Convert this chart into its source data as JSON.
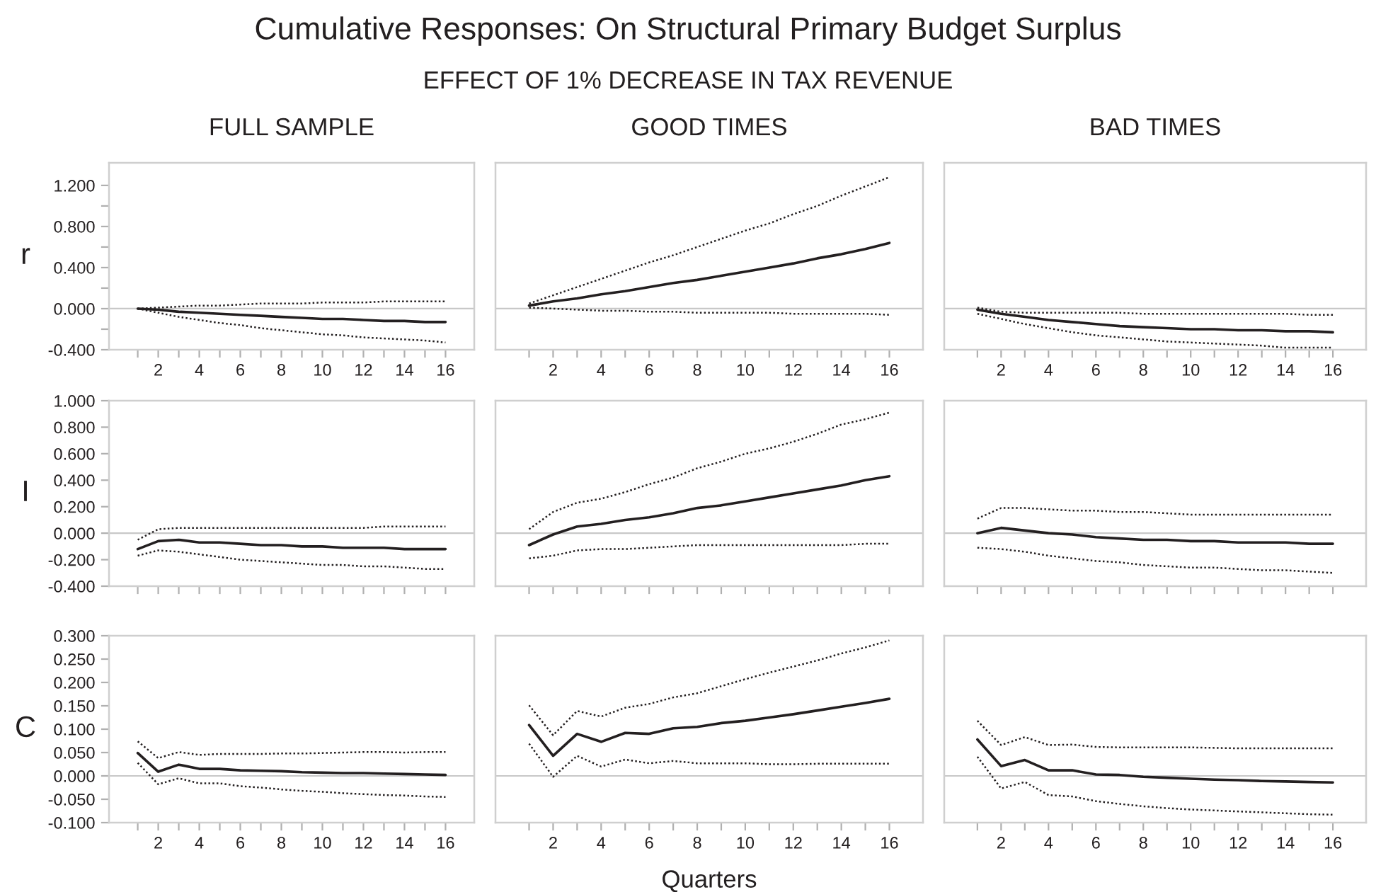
{
  "chart_data": [
    {
      "type": "line",
      "title": "FULL SAMPLE",
      "ylabel": "r",
      "annotations": [
        "Cumulative Responses: On Structural Primary Budget Surplus",
        "EFFECT OF 1% DECREASE IN TAX REVENUE"
      ],
      "x": [
        1,
        2,
        3,
        4,
        5,
        6,
        7,
        8,
        9,
        10,
        11,
        12,
        13,
        14,
        15,
        16
      ],
      "xlim": [
        -0.4,
        17.4
      ],
      "ylim": [
        -0.4,
        1.42
      ],
      "xticks": [
        {
          "value": 1,
          "label": null
        },
        2,
        {
          "value": 3,
          "label": null
        },
        4,
        {
          "value": 5,
          "label": null
        },
        6,
        {
          "value": 7,
          "label": null
        },
        8,
        {
          "value": 9,
          "label": null
        },
        10,
        {
          "value": 11,
          "label": null
        },
        12,
        {
          "value": 13,
          "label": null
        },
        14,
        {
          "value": 15,
          "label": null
        },
        16
      ],
      "yticks": [
        {
          "value": -0.4,
          "label": "-0.400"
        },
        {
          "value": -0.2,
          "label": null
        },
        {
          "value": 0,
          "label": "0.000"
        },
        {
          "value": 0.2,
          "label": null
        },
        {
          "value": 0.4,
          "label": "0.400"
        },
        {
          "value": 0.6,
          "label": null
        },
        {
          "value": 0.8,
          "label": "0.800"
        },
        {
          "value": 1.0,
          "label": null
        },
        {
          "value": 1.2,
          "label": "1.200"
        }
      ],
      "ref_lines": [
        {
          "axis": "y",
          "value": 0,
          "color": "#c8c8c8"
        }
      ],
      "series": [
        {
          "color": "#231f20",
          "line_style": "solid",
          "values": [
            0.0,
            -0.01,
            -0.03,
            -0.04,
            -0.05,
            -0.06,
            -0.07,
            -0.08,
            -0.09,
            -0.1,
            -0.1,
            -0.11,
            -0.12,
            -0.12,
            -0.13,
            -0.13
          ]
        },
        {
          "color": "#231f20",
          "line_style": "dotted",
          "values": [
            0.0,
            0.01,
            0.02,
            0.03,
            0.03,
            0.04,
            0.05,
            0.05,
            0.05,
            0.06,
            0.06,
            0.06,
            0.07,
            0.07,
            0.07,
            0.07
          ]
        },
        {
          "color": "#231f20",
          "line_style": "dotted",
          "values": [
            0.0,
            -0.04,
            -0.08,
            -0.11,
            -0.14,
            -0.16,
            -0.19,
            -0.21,
            -0.23,
            -0.25,
            -0.26,
            -0.28,
            -0.29,
            -0.3,
            -0.31,
            -0.33
          ]
        }
      ]
    },
    {
      "type": "line",
      "title": "GOOD TIMES",
      "tick_labels": "x",
      "x": [
        1,
        2,
        3,
        4,
        5,
        6,
        7,
        8,
        9,
        10,
        11,
        12,
        13,
        14,
        15,
        16
      ],
      "xlim": [
        -0.4,
        17.4
      ],
      "ylim": [
        -0.4,
        1.42
      ],
      "xticks": [
        {
          "value": 1,
          "label": null
        },
        2,
        {
          "value": 3,
          "label": null
        },
        4,
        {
          "value": 5,
          "label": null
        },
        6,
        {
          "value": 7,
          "label": null
        },
        8,
        {
          "value": 9,
          "label": null
        },
        10,
        {
          "value": 11,
          "label": null
        },
        12,
        {
          "value": 13,
          "label": null
        },
        14,
        {
          "value": 15,
          "label": null
        },
        16
      ],
      "ref_lines": [
        {
          "axis": "y",
          "value": 0,
          "color": "#c8c8c8"
        }
      ],
      "series": [
        {
          "color": "#231f20",
          "line_style": "solid",
          "values": [
            0.03,
            0.07,
            0.1,
            0.14,
            0.17,
            0.21,
            0.25,
            0.28,
            0.32,
            0.36,
            0.4,
            0.44,
            0.49,
            0.53,
            0.58,
            0.64
          ]
        },
        {
          "color": "#231f20",
          "line_style": "dotted",
          "values": [
            0.05,
            0.13,
            0.21,
            0.29,
            0.37,
            0.45,
            0.52,
            0.6,
            0.68,
            0.76,
            0.83,
            0.92,
            1.0,
            1.1,
            1.19,
            1.28
          ]
        },
        {
          "color": "#231f20",
          "line_style": "dotted",
          "values": [
            0.01,
            0.0,
            -0.01,
            -0.02,
            -0.02,
            -0.03,
            -0.03,
            -0.04,
            -0.04,
            -0.04,
            -0.04,
            -0.05,
            -0.05,
            -0.05,
            -0.05,
            -0.06
          ]
        }
      ]
    },
    {
      "type": "line",
      "title": "BAD TIMES",
      "tick_labels": "x",
      "x": [
        1,
        2,
        3,
        4,
        5,
        6,
        7,
        8,
        9,
        10,
        11,
        12,
        13,
        14,
        15,
        16
      ],
      "xlim": [
        -0.4,
        17.4
      ],
      "ylim": [
        -0.4,
        1.42
      ],
      "xticks": [
        {
          "value": 1,
          "label": null
        },
        2,
        {
          "value": 3,
          "label": null
        },
        4,
        {
          "value": 5,
          "label": null
        },
        6,
        {
          "value": 7,
          "label": null
        },
        8,
        {
          "value": 9,
          "label": null
        },
        10,
        {
          "value": 11,
          "label": null
        },
        12,
        {
          "value": 13,
          "label": null
        },
        14,
        {
          "value": 15,
          "label": null
        },
        16
      ],
      "ref_lines": [
        {
          "axis": "y",
          "value": 0,
          "color": "#c8c8c8"
        }
      ],
      "series": [
        {
          "color": "#231f20",
          "line_style": "solid",
          "values": [
            -0.01,
            -0.05,
            -0.08,
            -0.11,
            -0.13,
            -0.15,
            -0.17,
            -0.18,
            -0.19,
            -0.2,
            -0.2,
            -0.21,
            -0.21,
            -0.22,
            -0.22,
            -0.23
          ]
        },
        {
          "color": "#231f20",
          "line_style": "dotted",
          "values": [
            0.01,
            -0.03,
            -0.04,
            -0.04,
            -0.04,
            -0.04,
            -0.04,
            -0.05,
            -0.05,
            -0.05,
            -0.05,
            -0.05,
            -0.05,
            -0.05,
            -0.06,
            -0.06
          ]
        },
        {
          "color": "#231f20",
          "line_style": "dotted",
          "values": [
            -0.05,
            -0.1,
            -0.15,
            -0.19,
            -0.23,
            -0.26,
            -0.28,
            -0.3,
            -0.32,
            -0.33,
            -0.34,
            -0.35,
            -0.36,
            -0.38,
            -0.38,
            -0.38
          ]
        }
      ]
    },
    {
      "type": "line",
      "ylabel": "I",
      "tick_labels": "y",
      "x": [
        1,
        2,
        3,
        4,
        5,
        6,
        7,
        8,
        9,
        10,
        11,
        12,
        13,
        14,
        15,
        16
      ],
      "xlim": [
        -0.4,
        17.4
      ],
      "ylim": [
        -0.4,
        1.0
      ],
      "xticks": [
        1,
        2,
        3,
        4,
        5,
        6,
        7,
        8,
        9,
        10,
        11,
        12,
        13,
        14,
        15,
        16
      ],
      "yticks": [
        {
          "value": -0.4,
          "label": "-0.400"
        },
        {
          "value": -0.2,
          "label": "-0.200"
        },
        {
          "value": 0,
          "label": "0.000"
        },
        {
          "value": 0.2,
          "label": "0.200"
        },
        {
          "value": 0.4,
          "label": "0.400"
        },
        {
          "value": 0.6,
          "label": "0.600"
        },
        {
          "value": 0.8,
          "label": "0.800"
        },
        {
          "value": 1.0,
          "label": "1.000"
        }
      ],
      "ref_lines": [
        {
          "axis": "y",
          "value": 0,
          "color": "#c8c8c8"
        }
      ],
      "series": [
        {
          "color": "#231f20",
          "line_style": "solid",
          "values": [
            -0.12,
            -0.06,
            -0.05,
            -0.07,
            -0.07,
            -0.08,
            -0.09,
            -0.09,
            -0.1,
            -0.1,
            -0.11,
            -0.11,
            -0.11,
            -0.12,
            -0.12,
            -0.12
          ]
        },
        {
          "color": "#231f20",
          "line_style": "dotted",
          "values": [
            -0.05,
            0.03,
            0.04,
            0.04,
            0.04,
            0.04,
            0.04,
            0.04,
            0.04,
            0.04,
            0.04,
            0.04,
            0.05,
            0.05,
            0.05,
            0.05
          ]
        },
        {
          "color": "#231f20",
          "line_style": "dotted",
          "values": [
            -0.17,
            -0.13,
            -0.14,
            -0.16,
            -0.18,
            -0.2,
            -0.21,
            -0.22,
            -0.23,
            -0.24,
            -0.24,
            -0.25,
            -0.25,
            -0.26,
            -0.27,
            -0.27
          ]
        }
      ]
    },
    {
      "type": "line",
      "tick_labels": false,
      "x": [
        1,
        2,
        3,
        4,
        5,
        6,
        7,
        8,
        9,
        10,
        11,
        12,
        13,
        14,
        15,
        16
      ],
      "xlim": [
        -0.4,
        17.4
      ],
      "ylim": [
        -0.4,
        1.0
      ],
      "xticks": [
        1,
        2,
        3,
        4,
        5,
        6,
        7,
        8,
        9,
        10,
        11,
        12,
        13,
        14,
        15,
        16
      ],
      "ref_lines": [
        {
          "axis": "y",
          "value": 0,
          "color": "#c8c8c8"
        }
      ],
      "series": [
        {
          "color": "#231f20",
          "line_style": "solid",
          "values": [
            -0.09,
            -0.01,
            0.05,
            0.07,
            0.1,
            0.12,
            0.15,
            0.19,
            0.21,
            0.24,
            0.27,
            0.3,
            0.33,
            0.36,
            0.4,
            0.43
          ]
        },
        {
          "color": "#231f20",
          "line_style": "dotted",
          "values": [
            0.03,
            0.16,
            0.23,
            0.26,
            0.31,
            0.37,
            0.42,
            0.49,
            0.54,
            0.6,
            0.64,
            0.69,
            0.75,
            0.82,
            0.86,
            0.91
          ]
        },
        {
          "color": "#231f20",
          "line_style": "dotted",
          "values": [
            -0.19,
            -0.17,
            -0.13,
            -0.12,
            -0.12,
            -0.11,
            -0.1,
            -0.09,
            -0.09,
            -0.09,
            -0.09,
            -0.09,
            -0.09,
            -0.09,
            -0.08,
            -0.08
          ]
        }
      ]
    },
    {
      "type": "line",
      "tick_labels": false,
      "x": [
        1,
        2,
        3,
        4,
        5,
        6,
        7,
        8,
        9,
        10,
        11,
        12,
        13,
        14,
        15,
        16
      ],
      "xlim": [
        -0.4,
        17.4
      ],
      "ylim": [
        -0.4,
        1.0
      ],
      "xticks": [
        1,
        2,
        3,
        4,
        5,
        6,
        7,
        8,
        9,
        10,
        11,
        12,
        13,
        14,
        15,
        16
      ],
      "ref_lines": [
        {
          "axis": "y",
          "value": 0,
          "color": "#c8c8c8"
        }
      ],
      "series": [
        {
          "color": "#231f20",
          "line_style": "solid",
          "values": [
            0.0,
            0.04,
            0.02,
            0.0,
            -0.01,
            -0.03,
            -0.04,
            -0.05,
            -0.05,
            -0.06,
            -0.06,
            -0.07,
            -0.07,
            -0.07,
            -0.08,
            -0.08
          ]
        },
        {
          "color": "#231f20",
          "line_style": "dotted",
          "values": [
            0.11,
            0.19,
            0.19,
            0.18,
            0.17,
            0.17,
            0.16,
            0.16,
            0.15,
            0.14,
            0.14,
            0.14,
            0.14,
            0.14,
            0.14,
            0.14
          ]
        },
        {
          "color": "#231f20",
          "line_style": "dotted",
          "values": [
            -0.11,
            -0.12,
            -0.14,
            -0.17,
            -0.19,
            -0.21,
            -0.22,
            -0.24,
            -0.25,
            -0.26,
            -0.26,
            -0.27,
            -0.28,
            -0.28,
            -0.29,
            -0.3
          ]
        }
      ]
    },
    {
      "type": "line",
      "ylabel": "C",
      "x": [
        1,
        2,
        3,
        4,
        5,
        6,
        7,
        8,
        9,
        10,
        11,
        12,
        13,
        14,
        15,
        16
      ],
      "xlim": [
        -0.4,
        17.4
      ],
      "ylim": [
        -0.1,
        0.3
      ],
      "xticks": [
        {
          "value": 1,
          "label": null
        },
        2,
        {
          "value": 3,
          "label": null
        },
        4,
        {
          "value": 5,
          "label": null
        },
        6,
        {
          "value": 7,
          "label": null
        },
        8,
        {
          "value": 9,
          "label": null
        },
        10,
        {
          "value": 11,
          "label": null
        },
        12,
        {
          "value": 13,
          "label": null
        },
        14,
        {
          "value": 15,
          "label": null
        },
        16
      ],
      "yticks": [
        {
          "value": -0.1,
          "label": "-0.100"
        },
        {
          "value": -0.05,
          "label": "-0.050"
        },
        {
          "value": 0,
          "label": "0.000"
        },
        {
          "value": 0.05,
          "label": "0.050"
        },
        {
          "value": 0.1,
          "label": "0.100"
        },
        {
          "value": 0.15,
          "label": "0.150"
        },
        {
          "value": 0.2,
          "label": "0.200"
        },
        {
          "value": 0.25,
          "label": "0.250"
        },
        {
          "value": 0.3,
          "label": "0.300"
        }
      ],
      "ref_lines": [
        {
          "axis": "y",
          "value": 0,
          "color": "#c8c8c8"
        }
      ],
      "series": [
        {
          "color": "#231f20",
          "line_style": "solid",
          "values": [
            0.049,
            0.009,
            0.024,
            0.015,
            0.015,
            0.012,
            0.011,
            0.01,
            0.008,
            0.007,
            0.006,
            0.006,
            0.005,
            0.004,
            0.003,
            0.002
          ]
        },
        {
          "color": "#231f20",
          "line_style": "dotted",
          "values": [
            0.074,
            0.038,
            0.051,
            0.045,
            0.047,
            0.047,
            0.047,
            0.048,
            0.048,
            0.049,
            0.05,
            0.051,
            0.051,
            0.05,
            0.051,
            0.051
          ]
        },
        {
          "color": "#231f20",
          "line_style": "dotted",
          "values": [
            0.028,
            -0.018,
            -0.005,
            -0.016,
            -0.016,
            -0.022,
            -0.025,
            -0.029,
            -0.032,
            -0.034,
            -0.037,
            -0.039,
            -0.041,
            -0.042,
            -0.044,
            -0.045
          ]
        }
      ]
    },
    {
      "type": "line",
      "xlabel": "Quarters",
      "tick_labels": "x",
      "x": [
        1,
        2,
        3,
        4,
        5,
        6,
        7,
        8,
        9,
        10,
        11,
        12,
        13,
        14,
        15,
        16
      ],
      "xlim": [
        -0.4,
        17.4
      ],
      "ylim": [
        -0.1,
        0.3
      ],
      "xticks": [
        {
          "value": 1,
          "label": null
        },
        2,
        {
          "value": 3,
          "label": null
        },
        4,
        {
          "value": 5,
          "label": null
        },
        6,
        {
          "value": 7,
          "label": null
        },
        8,
        {
          "value": 9,
          "label": null
        },
        10,
        {
          "value": 11,
          "label": null
        },
        12,
        {
          "value": 13,
          "label": null
        },
        14,
        {
          "value": 15,
          "label": null
        },
        16
      ],
      "ref_lines": [
        {
          "axis": "y",
          "value": 0,
          "color": "#c8c8c8"
        }
      ],
      "series": [
        {
          "color": "#231f20",
          "line_style": "solid",
          "values": [
            0.109,
            0.043,
            0.09,
            0.073,
            0.092,
            0.09,
            0.102,
            0.105,
            0.113,
            0.118,
            0.125,
            0.132,
            0.14,
            0.148,
            0.156,
            0.165
          ]
        },
        {
          "color": "#231f20",
          "line_style": "dotted",
          "values": [
            0.151,
            0.087,
            0.139,
            0.127,
            0.146,
            0.154,
            0.168,
            0.177,
            0.192,
            0.207,
            0.221,
            0.234,
            0.247,
            0.262,
            0.275,
            0.29
          ]
        },
        {
          "color": "#231f20",
          "line_style": "dotted",
          "values": [
            0.069,
            -0.002,
            0.043,
            0.02,
            0.035,
            0.027,
            0.032,
            0.027,
            0.027,
            0.027,
            0.025,
            0.025,
            0.026,
            0.026,
            0.026,
            0.026
          ]
        }
      ]
    },
    {
      "type": "line",
      "tick_labels": "x",
      "x": [
        1,
        2,
        3,
        4,
        5,
        6,
        7,
        8,
        9,
        10,
        11,
        12,
        13,
        14,
        15,
        16
      ],
      "xlim": [
        -0.4,
        17.4
      ],
      "ylim": [
        -0.1,
        0.3
      ],
      "xticks": [
        {
          "value": 1,
          "label": null
        },
        2,
        {
          "value": 3,
          "label": null
        },
        4,
        {
          "value": 5,
          "label": null
        },
        6,
        {
          "value": 7,
          "label": null
        },
        8,
        {
          "value": 9,
          "label": null
        },
        10,
        {
          "value": 11,
          "label": null
        },
        12,
        {
          "value": 13,
          "label": null
        },
        14,
        {
          "value": 15,
          "label": null
        },
        16
      ],
      "ref_lines": [
        {
          "axis": "y",
          "value": 0,
          "color": "#c8c8c8"
        }
      ],
      "series": [
        {
          "color": "#231f20",
          "line_style": "solid",
          "values": [
            0.078,
            0.021,
            0.034,
            0.012,
            0.012,
            0.003,
            0.002,
            -0.002,
            -0.004,
            -0.006,
            -0.008,
            -0.009,
            -0.011,
            -0.012,
            -0.013,
            -0.014
          ]
        },
        {
          "color": "#231f20",
          "line_style": "dotted",
          "values": [
            0.118,
            0.066,
            0.083,
            0.066,
            0.067,
            0.062,
            0.061,
            0.061,
            0.061,
            0.061,
            0.06,
            0.059,
            0.059,
            0.059,
            0.059,
            0.059
          ]
        },
        {
          "color": "#231f20",
          "line_style": "dotted",
          "values": [
            0.041,
            -0.027,
            -0.013,
            -0.041,
            -0.044,
            -0.054,
            -0.06,
            -0.065,
            -0.069,
            -0.072,
            -0.074,
            -0.076,
            -0.078,
            -0.08,
            -0.082,
            -0.083
          ]
        }
      ]
    }
  ]
}
